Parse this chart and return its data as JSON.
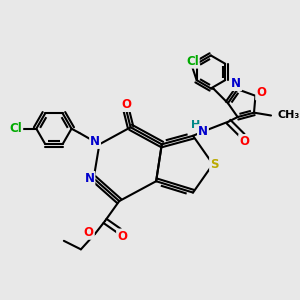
{
  "bg_color": "#e8e8e8",
  "bond_color": "#000000",
  "bond_width": 1.5,
  "atom_colors": {
    "N": "#0000cc",
    "O": "#ff0000",
    "S": "#bbaa00",
    "Cl": "#00aa00",
    "H": "#008888",
    "C": "#000000"
  },
  "font_size": 8.5
}
